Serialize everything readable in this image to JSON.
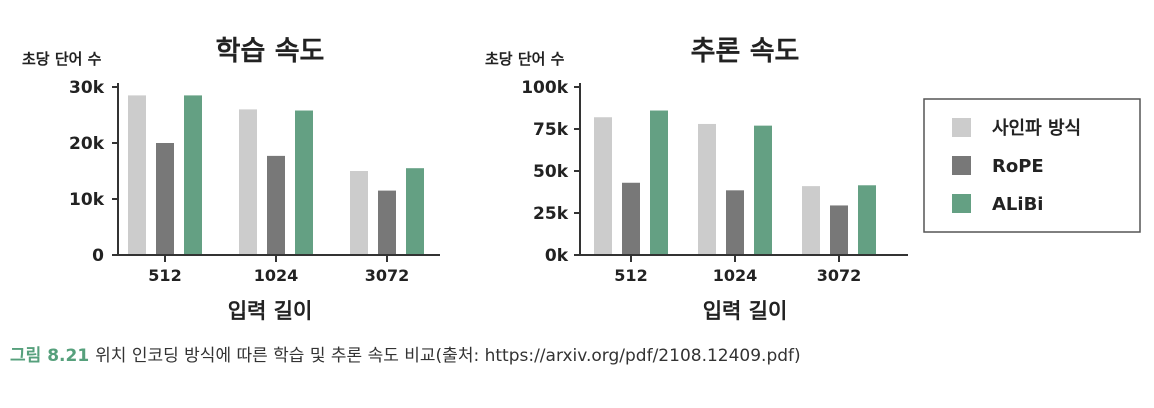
{
  "chart_data": [
    {
      "type": "bar",
      "title": "학습 속도",
      "ylabel": "초당 단어 수",
      "xlabel": "입력 길이",
      "categories": [
        "512",
        "1024",
        "3072"
      ],
      "ylim": [
        0,
        30000
      ],
      "yticks": [
        "0",
        "10k",
        "20k",
        "30k"
      ],
      "ytick_values": [
        0,
        10000,
        20000,
        30000
      ],
      "series": [
        {
          "name": "사인파 방식",
          "values": [
            28500,
            26000,
            15000
          ],
          "color": "#cccccc"
        },
        {
          "name": "RoPE",
          "values": [
            20000,
            17700,
            11500
          ],
          "color": "#787878"
        },
        {
          "name": "ALiBi",
          "values": [
            28500,
            25800,
            15500
          ],
          "color": "#64a083"
        }
      ]
    },
    {
      "type": "bar",
      "title": "추론 속도",
      "ylabel": "초당 단어 수",
      "xlabel": "입력 길이",
      "categories": [
        "512",
        "1024",
        "3072"
      ],
      "ylim": [
        0,
        100000
      ],
      "yticks": [
        "0k",
        "25k",
        "50k",
        "75k",
        "100k"
      ],
      "ytick_values": [
        0,
        25000,
        50000,
        75000,
        100000
      ],
      "series": [
        {
          "name": "사인파 방식",
          "values": [
            82000,
            78000,
            41000
          ],
          "color": "#cccccc"
        },
        {
          "name": "RoPE",
          "values": [
            43000,
            38500,
            29500
          ],
          "color": "#787878"
        },
        {
          "name": "ALiBi",
          "values": [
            86000,
            77000,
            41500
          ],
          "color": "#64a083"
        }
      ]
    }
  ],
  "legend": {
    "placement": "right",
    "items": [
      {
        "label": "사인파 방식",
        "color": "#cccccc"
      },
      {
        "label": "RoPE",
        "color": "#787878"
      },
      {
        "label": "ALiBi",
        "color": "#64a083"
      }
    ]
  },
  "caption": {
    "number": "그림 8.21",
    "text": "위치 인코딩 방식에 따른 학습 및 추론 속도 비교(출처: https://arxiv.org/pdf/2108.12409.pdf)"
  }
}
